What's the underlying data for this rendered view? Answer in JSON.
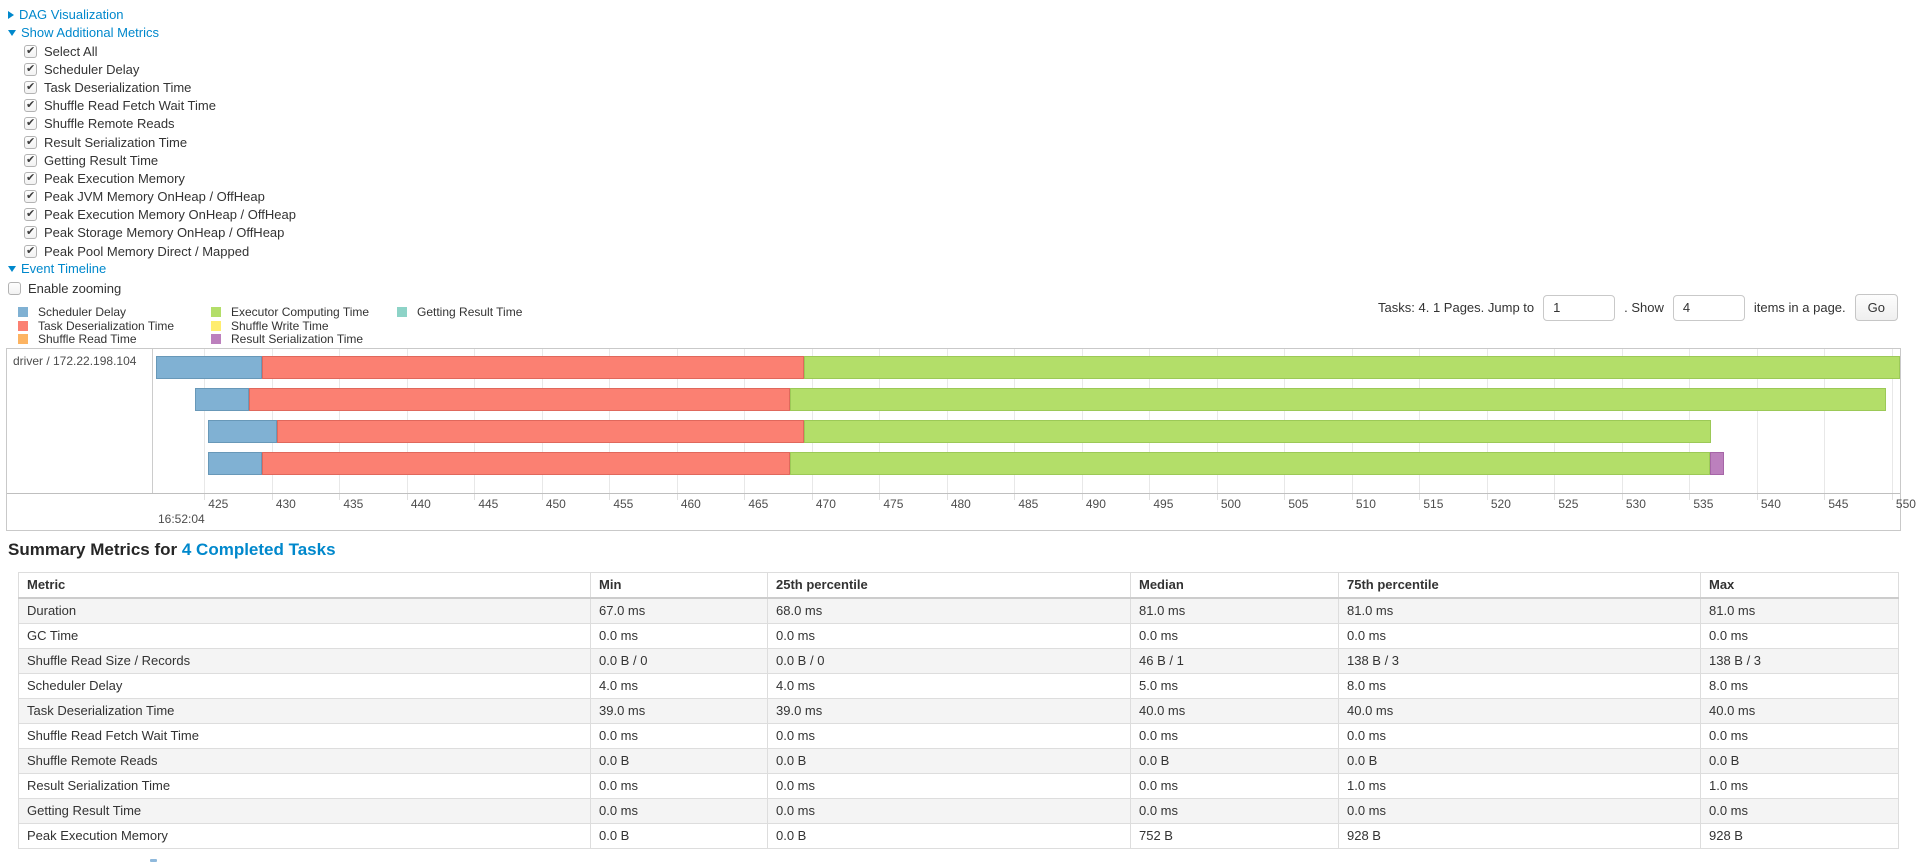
{
  "controls": {
    "dag": {
      "label": "DAG Visualization",
      "state": "collapsed"
    },
    "metrics": {
      "label": "Show Additional Metrics",
      "state": "expanded",
      "items": [
        "Select All",
        "Scheduler Delay",
        "Task Deserialization Time",
        "Shuffle Read Fetch Wait Time",
        "Shuffle Remote Reads",
        "Result Serialization Time",
        "Getting Result Time",
        "Peak Execution Memory",
        "Peak JVM Memory OnHeap / OffHeap",
        "Peak Execution Memory OnHeap / OffHeap",
        "Peak Storage Memory OnHeap / OffHeap",
        "Peak Pool Memory Direct / Mapped"
      ],
      "all_checked": true
    },
    "event_timeline": {
      "label": "Event Timeline",
      "state": "expanded"
    },
    "enable_zooming": {
      "label": "Enable zooming",
      "checked": false
    }
  },
  "pagination": {
    "prefix": "Tasks: 4. 1 Pages. Jump to",
    "jump_value": "1",
    "mid": ". Show",
    "show_value": "4",
    "suffix": "items in a page.",
    "go_label": "Go"
  },
  "colors": {
    "link": "#0088cc",
    "scheduler_delay": {
      "fill": "#80B1D3",
      "border": "#6898B8"
    },
    "task_deserialization": {
      "fill": "#FB8072",
      "border": "#E0685C"
    },
    "shuffle_read": {
      "fill": "#FDB462",
      "border": "#E39A48"
    },
    "executor_computing": {
      "fill": "#B3DE69",
      "border": "#9CC957"
    },
    "shuffle_write": {
      "fill": "#FFED6F",
      "border": "#E6D55C"
    },
    "result_serialization": {
      "fill": "#BC80BD",
      "border": "#A666A7"
    },
    "getting_result": {
      "fill": "#8DD3C7",
      "border": "#75BCB0"
    }
  },
  "legend": {
    "columns": [
      [
        {
          "key": "scheduler_delay",
          "label": "Scheduler Delay"
        },
        {
          "key": "task_deserialization",
          "label": "Task Deserialization Time"
        },
        {
          "key": "shuffle_read",
          "label": "Shuffle Read Time"
        }
      ],
      [
        {
          "key": "executor_computing",
          "label": "Executor Computing Time"
        },
        {
          "key": "shuffle_write",
          "label": "Shuffle Write Time"
        },
        {
          "key": "result_serialization",
          "label": "Result Serialization Time"
        }
      ],
      [
        {
          "key": "getting_result",
          "label": "Getting Result Time"
        }
      ]
    ]
  },
  "chart_data": {
    "type": "timeline",
    "group_label": "driver / 172.22.198.104",
    "axis": {
      "domain": [
        421.2,
        550.6
      ],
      "ticks": [
        425,
        430,
        435,
        440,
        445,
        450,
        455,
        460,
        465,
        470,
        475,
        480,
        485,
        490,
        495,
        500,
        505,
        510,
        515,
        520,
        525,
        530,
        535,
        540,
        545,
        550
      ],
      "major_label": "16:52:04",
      "units": "ms within second 16:52:04"
    },
    "tasks": [
      {
        "segments": [
          {
            "type": "scheduler_delay",
            "start": 421.4,
            "end": 429.3
          },
          {
            "type": "task_deserialization",
            "start": 429.3,
            "end": 469.4
          },
          {
            "type": "executor_computing",
            "start": 469.4,
            "end": 550.6
          }
        ]
      },
      {
        "segments": [
          {
            "type": "scheduler_delay",
            "start": 424.3,
            "end": 428.3
          },
          {
            "type": "task_deserialization",
            "start": 428.3,
            "end": 468.4
          },
          {
            "type": "executor_computing",
            "start": 468.4,
            "end": 549.6
          }
        ]
      },
      {
        "segments": [
          {
            "type": "scheduler_delay",
            "start": 425.3,
            "end": 430.4
          },
          {
            "type": "task_deserialization",
            "start": 430.4,
            "end": 469.4
          },
          {
            "type": "executor_computing",
            "start": 469.4,
            "end": 536.6
          }
        ]
      },
      {
        "segments": [
          {
            "type": "scheduler_delay",
            "start": 425.3,
            "end": 429.3
          },
          {
            "type": "task_deserialization",
            "start": 429.3,
            "end": 468.4
          },
          {
            "type": "executor_computing",
            "start": 468.4,
            "end": 536.5
          },
          {
            "type": "result_serialization",
            "start": 536.5,
            "end": 537.6
          }
        ]
      }
    ]
  },
  "summary": {
    "title_prefix": "Summary Metrics for",
    "title_link": "4 Completed Tasks",
    "table": {
      "headers": [
        "Metric",
        "Min",
        "25th percentile",
        "Median",
        "75th percentile",
        "Max"
      ],
      "rows": [
        [
          "Duration",
          "67.0 ms",
          "68.0 ms",
          "81.0 ms",
          "81.0 ms",
          "81.0 ms"
        ],
        [
          "GC Time",
          "0.0 ms",
          "0.0 ms",
          "0.0 ms",
          "0.0 ms",
          "0.0 ms"
        ],
        [
          "Shuffle Read Size / Records",
          "0.0 B / 0",
          "0.0 B / 0",
          "46 B / 1",
          "138 B / 3",
          "138 B / 3"
        ],
        [
          "Scheduler Delay",
          "4.0 ms",
          "4.0 ms",
          "5.0 ms",
          "8.0 ms",
          "8.0 ms"
        ],
        [
          "Task Deserialization Time",
          "39.0 ms",
          "39.0 ms",
          "40.0 ms",
          "40.0 ms",
          "40.0 ms"
        ],
        [
          "Shuffle Read Fetch Wait Time",
          "0.0 ms",
          "0.0 ms",
          "0.0 ms",
          "0.0 ms",
          "0.0 ms"
        ],
        [
          "Shuffle Remote Reads",
          "0.0 B",
          "0.0 B",
          "0.0 B",
          "0.0 B",
          "0.0 B"
        ],
        [
          "Result Serialization Time",
          "0.0 ms",
          "0.0 ms",
          "0.0 ms",
          "1.0 ms",
          "1.0 ms"
        ],
        [
          "Getting Result Time",
          "0.0 ms",
          "0.0 ms",
          "0.0 ms",
          "0.0 ms",
          "0.0 ms"
        ],
        [
          "Peak Execution Memory",
          "0.0 B",
          "0.0 B",
          "752 B",
          "928 B",
          "928 B"
        ]
      ]
    }
  }
}
